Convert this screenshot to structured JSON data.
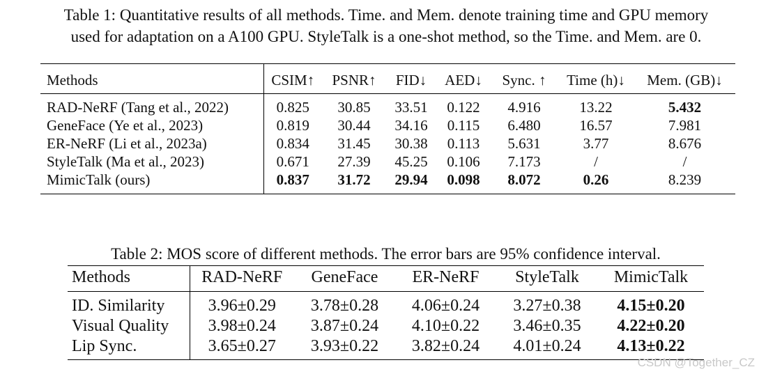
{
  "table1": {
    "caption_line1": "Table 1: Quantitative results of all methods. Time. and Mem. denote training time and GPU memory",
    "caption_line2": "used for adaptation on a A100 GPU. StyleTalk is a one-shot method, so the Time. and Mem. are 0.",
    "headers": [
      "Methods",
      "CSIM↑",
      "PSNR↑",
      "FID↓",
      "AED↓",
      "Sync. ↑",
      "Time (h)↓",
      "Mem. (GB)↓"
    ],
    "rows": [
      {
        "method": "RAD-NeRF (Tang et al., 2022)",
        "csim": "0.825",
        "psnr": "30.85",
        "fid": "33.51",
        "aed": "0.122",
        "sync": "4.916",
        "time": "13.22",
        "mem": "5.432"
      },
      {
        "method": "GeneFace (Ye et al., 2023)",
        "csim": "0.819",
        "psnr": "30.44",
        "fid": "34.16",
        "aed": "0.115",
        "sync": "6.480",
        "time": "16.57",
        "mem": "7.981"
      },
      {
        "method": "ER-NeRF (Li et al., 2023a)",
        "csim": "0.834",
        "psnr": "31.45",
        "fid": "30.38",
        "aed": "0.113",
        "sync": "5.631",
        "time": "3.77",
        "mem": "8.676"
      },
      {
        "method": "StyleTalk (Ma et al., 2023)",
        "csim": "0.671",
        "psnr": "27.39",
        "fid": "45.25",
        "aed": "0.106",
        "sync": "7.173",
        "time": "/",
        "mem": "/"
      },
      {
        "method": "MimicTalk (ours)",
        "csim": "0.837",
        "psnr": "31.72",
        "fid": "29.94",
        "aed": "0.098",
        "sync": "8.072",
        "time": "0.26",
        "mem": "8.239"
      }
    ]
  },
  "table2": {
    "caption": "Table 2: MOS score of different methods. The error bars are 95% confidence interval.",
    "headers": [
      "Methods",
      "RAD-NeRF",
      "GeneFace",
      "ER-NeRF",
      "StyleTalk",
      "MimicTalk"
    ],
    "rows": [
      {
        "metric": "ID. Similarity",
        "rad": "3.96±0.29",
        "gene": "3.78±0.28",
        "er": "4.06±0.24",
        "style": "3.27±0.38",
        "mimic": "4.15±0.20"
      },
      {
        "metric": "Visual Quality",
        "rad": "3.98±0.24",
        "gene": "3.87±0.24",
        "er": "4.10±0.22",
        "style": "3.46±0.35",
        "mimic": "4.22±0.20"
      },
      {
        "metric": "Lip Sync.",
        "rad": "3.65±0.27",
        "gene": "3.93±0.22",
        "er": "3.82±0.24",
        "style": "4.01±0.24",
        "mimic": "4.13±0.22"
      }
    ]
  },
  "watermark": "CSDN @Together_CZ"
}
